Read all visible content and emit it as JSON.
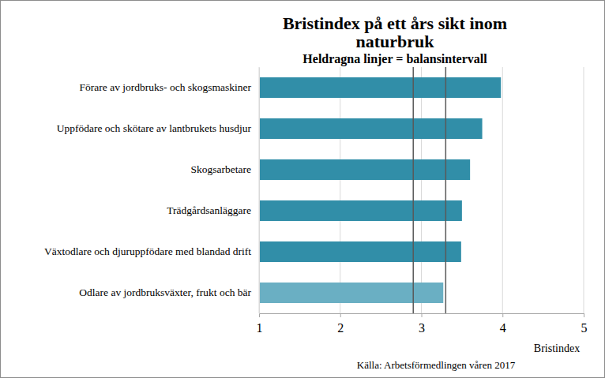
{
  "chart_data": {
    "type": "bar",
    "orientation": "horizontal",
    "title": "Bristindex på ett års sikt inom naturbruk",
    "subtitle": "Heldragna linjer = balansintervall",
    "x_label": "Bristindex",
    "source": "Källa: Arbetsförmedlingen våren 2017",
    "categories": [
      "Förare av jordbruks- och skogsmaskiner",
      "Uppfödare och skötare av lantbrukets husdjur",
      "Skogsarbetare",
      "Trädgårdsanläggare",
      "Växtodlare och djuruppfödare med blandad drift",
      "Odlare av jordbruksväxter, frukt och bär"
    ],
    "values": [
      3.98,
      3.75,
      3.6,
      3.5,
      3.49,
      3.27
    ],
    "colors": [
      "#318ea8",
      "#318ea8",
      "#318ea8",
      "#318ea8",
      "#318ea8",
      "#6aafc3"
    ],
    "balance_interval": [
      2.9,
      3.3
    ],
    "xlim": [
      1,
      5
    ],
    "xticks": [
      1,
      2,
      3,
      4,
      5
    ],
    "grid": true
  }
}
